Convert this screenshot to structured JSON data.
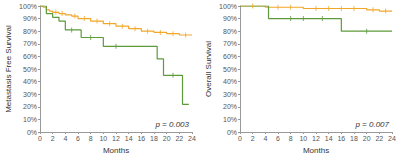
{
  "chart_data": [
    {
      "type": "line",
      "xlabel": "Months",
      "ylabel": "Metastasis Free Survival",
      "annotation": "p = 0.003",
      "xlim": [
        0,
        24
      ],
      "xticks": [
        0,
        2,
        4,
        6,
        8,
        10,
        12,
        14,
        16,
        18,
        20,
        22,
        24
      ],
      "ylim": [
        0,
        100
      ],
      "yticks": [
        {
          "value": 0,
          "label": "0%"
        },
        {
          "value": 10,
          "label": "10%"
        },
        {
          "value": 20,
          "label": "20%"
        },
        {
          "value": 30,
          "label": "30%"
        },
        {
          "value": 40,
          "label": "40%"
        },
        {
          "value": 50,
          "label": "50%"
        },
        {
          "value": 60,
          "label": "60%"
        },
        {
          "value": 70,
          "label": "70%"
        },
        {
          "value": 80,
          "label": "80%"
        },
        {
          "value": 90,
          "label": "90%"
        },
        {
          "value": 100,
          "label": "100%"
        }
      ],
      "grid": false,
      "series": [
        {
          "color": "#f2a72a",
          "line_style": "step",
          "marker": "censor",
          "x": [
            0,
            0.5,
            1,
            1.5,
            2,
            3,
            4,
            5,
            6,
            8,
            10,
            12,
            14,
            16,
            18,
            20,
            22,
            24
          ],
          "values": [
            100,
            99,
            97,
            96,
            95,
            94,
            93,
            92,
            90,
            88,
            86,
            84,
            82,
            80,
            79,
            78,
            77,
            77
          ],
          "censored": [
            2.5,
            3.5,
            5.5,
            7,
            9,
            11,
            13,
            15,
            17,
            19,
            21,
            23
          ]
        },
        {
          "color": "#5e9a3a",
          "line_style": "step",
          "marker": "censor",
          "x": [
            0,
            1,
            2,
            3,
            4,
            6.5,
            10,
            18.5,
            19.5,
            22.5,
            23.5
          ],
          "values": [
            100,
            94,
            91,
            88,
            81,
            75,
            68,
            58,
            45,
            22,
            22
          ],
          "censored": [
            5,
            8,
            12,
            21
          ]
        }
      ]
    },
    {
      "type": "line",
      "xlabel": "Months",
      "ylabel": "Overall Survival",
      "annotation": "p = 0.007",
      "xlim": [
        0,
        24
      ],
      "xticks": [
        0,
        2,
        4,
        6,
        8,
        10,
        12,
        14,
        16,
        18,
        20,
        22,
        24
      ],
      "ylim": [
        0,
        100
      ],
      "yticks": [
        {
          "value": 0,
          "label": "0%"
        },
        {
          "value": 10,
          "label": "10%"
        },
        {
          "value": 20,
          "label": "20%"
        },
        {
          "value": 30,
          "label": "30%"
        },
        {
          "value": 40,
          "label": "40%"
        },
        {
          "value": 50,
          "label": "50%"
        },
        {
          "value": 60,
          "label": "60%"
        },
        {
          "value": 70,
          "label": "70%"
        },
        {
          "value": 80,
          "label": "80%"
        },
        {
          "value": 90,
          "label": "90%"
        },
        {
          "value": 100,
          "label": "100%"
        }
      ],
      "grid": false,
      "series": [
        {
          "color": "#f2a72a",
          "line_style": "step",
          "marker": "censor",
          "x": [
            0,
            4,
            10,
            20,
            22,
            24
          ],
          "values": [
            100,
            99,
            98,
            97,
            96,
            96
          ],
          "censored": [
            2,
            6,
            8,
            12,
            14,
            16,
            18,
            21,
            23
          ]
        },
        {
          "color": "#5e9a3a",
          "line_style": "step",
          "marker": "censor",
          "x": [
            0,
            4.5,
            16,
            24
          ],
          "values": [
            100,
            90,
            80,
            80
          ],
          "censored": [
            8,
            10,
            13,
            20
          ]
        }
      ]
    }
  ]
}
